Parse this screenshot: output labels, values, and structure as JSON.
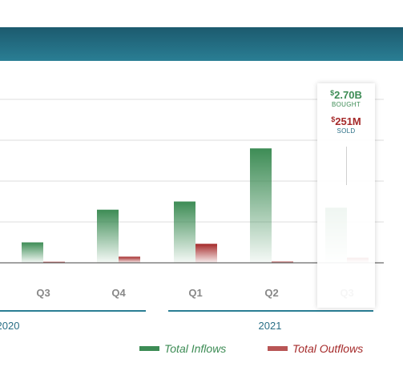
{
  "chart_data": {
    "type": "bar",
    "categories": [
      "Q3",
      "Q4",
      "Q1",
      "Q2",
      "Q3"
    ],
    "year_groups": [
      {
        "label": "2020",
        "categories": [
          "Q3",
          "Q4"
        ]
      },
      {
        "label": "2021",
        "categories": [
          "Q1",
          "Q2",
          "Q3"
        ]
      }
    ],
    "series": [
      {
        "name": "Total Inflows",
        "values": [
          1.0,
          2.6,
          3.0,
          5.6,
          2.7
        ],
        "color": "#3d8c55"
      },
      {
        "name": "Total Outflows",
        "values": [
          0.05,
          0.3,
          0.93,
          0.06,
          0.251
        ],
        "color": "#a52a2a"
      }
    ],
    "ylim": [
      0,
      8
    ],
    "units": "$B",
    "grid": true,
    "legend_position": "bottom-right",
    "tooltip": {
      "category": "Q3",
      "year": "2021",
      "bought": {
        "currency": "$",
        "amount": "2.70B",
        "label": "BOUGHT"
      },
      "sold": {
        "currency": "$",
        "amount": "251M",
        "label": "SOLD"
      }
    }
  }
}
